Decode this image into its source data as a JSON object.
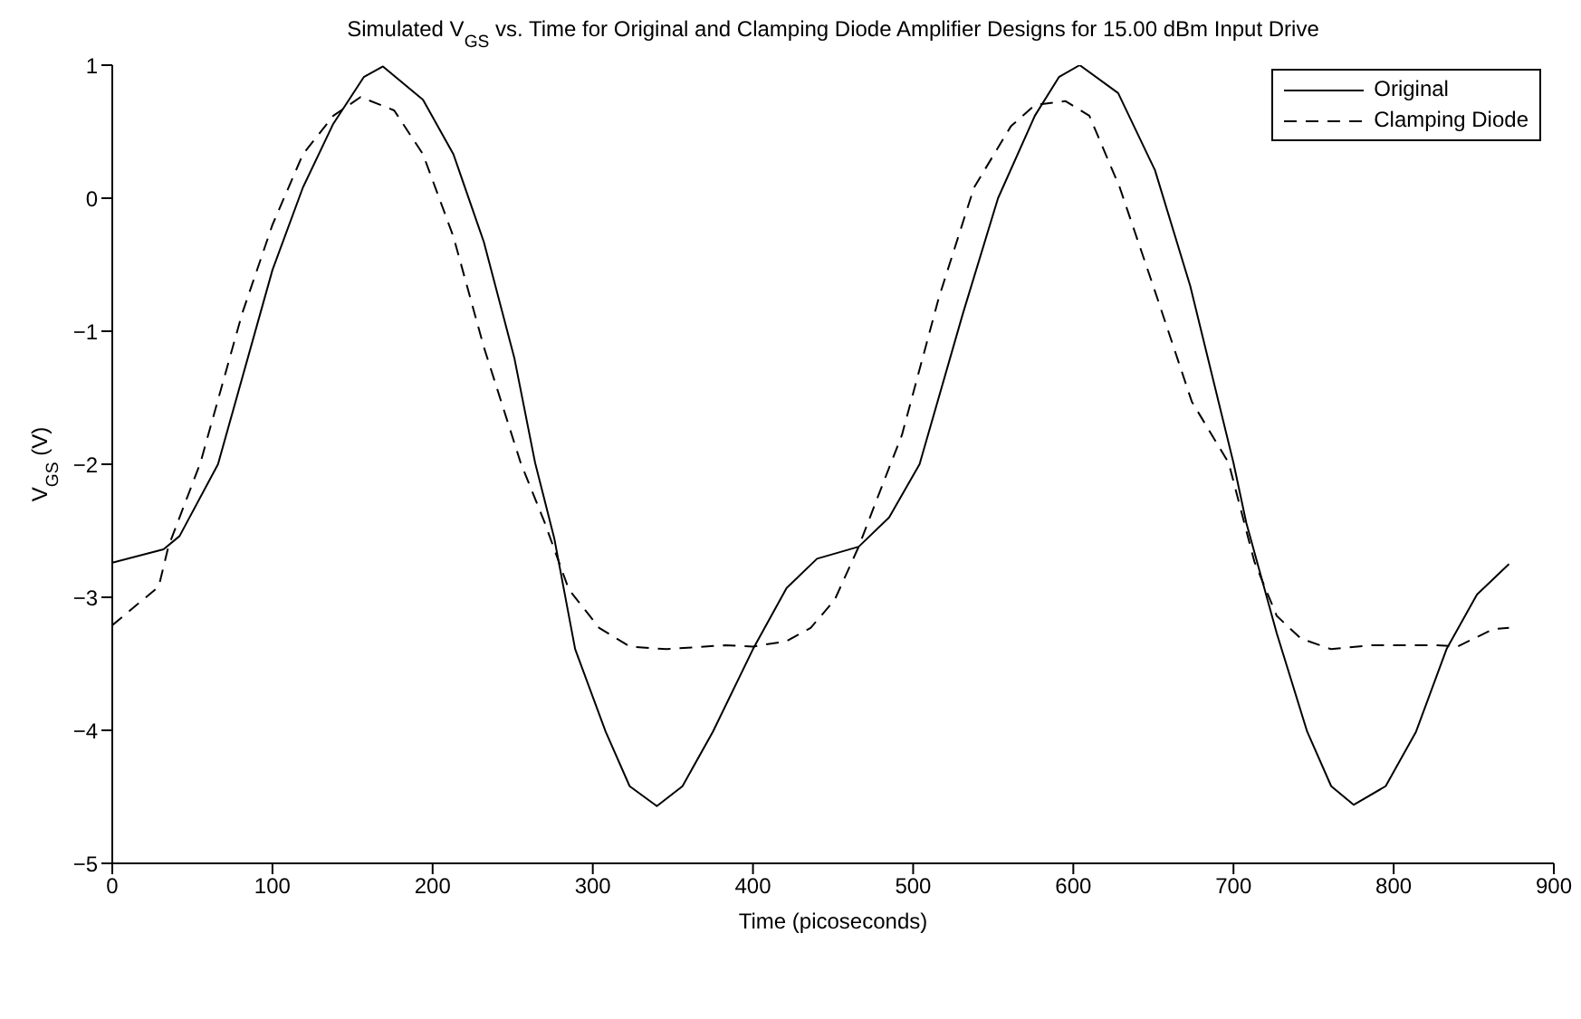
{
  "chart_data": {
    "type": "line",
    "title": "Simulated V$_{GS}$ vs. Time for Original and Clamping Diode Amplifier Designs for 15.00 dBm Input Drive",
    "xlabel": "Time (picoseconds)",
    "ylabel": "V$_{GS}$ (V)",
    "xlim": [
      0,
      900
    ],
    "xticks": [
      0,
      100,
      200,
      300,
      400,
      500,
      600,
      700,
      800,
      900
    ],
    "ylim": [
      -5,
      1
    ],
    "yticks": [
      -5,
      -4,
      -3,
      -2,
      -1,
      0,
      1
    ],
    "legend": "top right",
    "marker": "none",
    "series": [
      {
        "name": "Original",
        "color": "#000000",
        "line_style": "solid",
        "x": [
          0,
          32,
          42,
          66,
          100,
          119,
          138,
          157,
          169,
          194,
          213,
          232,
          251,
          264,
          276,
          289,
          308,
          323,
          340,
          356,
          375,
          400,
          421,
          440,
          466,
          485,
          504,
          531,
          553,
          576,
          591,
          604,
          628,
          651,
          673,
          700,
          708,
          727,
          746,
          761,
          775,
          795,
          814,
          833,
          852,
          872
        ],
        "values": [
          -2.74,
          -2.64,
          -2.54,
          -2.0,
          -0.54,
          0.08,
          0.56,
          0.91,
          0.99,
          0.74,
          0.33,
          -0.33,
          -1.2,
          -1.99,
          -2.56,
          -3.39,
          -4.01,
          -4.42,
          -4.57,
          -4.42,
          -4.01,
          -3.39,
          -2.93,
          -2.71,
          -2.62,
          -2.4,
          -2.0,
          -0.87,
          0,
          0.62,
          0.91,
          1.0,
          0.79,
          0.21,
          -0.66,
          -1.99,
          -2.44,
          -3.27,
          -4.01,
          -4.42,
          -4.56,
          -4.42,
          -4.01,
          -3.39,
          -2.98,
          -2.75
        ]
      },
      {
        "name": "Clamping Diode",
        "color": "#000000",
        "line_style": "dashed",
        "x": [
          0,
          29,
          35,
          55,
          81,
          100,
          119,
          138,
          155,
          176,
          194,
          213,
          232,
          255,
          270,
          285,
          304,
          323,
          346,
          383,
          400,
          421,
          436,
          451,
          466,
          481,
          493,
          516,
          538,
          561,
          576,
          595,
          610,
          629,
          651,
          674,
          697,
          713,
          727,
          742,
          761,
          787,
          825,
          840,
          862,
          872
        ],
        "values": [
          -3.21,
          -2.92,
          -2.62,
          -1.99,
          -0.87,
          -0.2,
          0.33,
          0.62,
          0.76,
          0.66,
          0.33,
          -0.29,
          -1.12,
          -1.99,
          -2.44,
          -2.94,
          -3.23,
          -3.37,
          -3.39,
          -3.36,
          -3.37,
          -3.33,
          -3.23,
          -3.02,
          -2.62,
          -2.15,
          -1.78,
          -0.75,
          0.08,
          0.54,
          0.7,
          0.73,
          0.62,
          0.08,
          -0.7,
          -1.53,
          -1.99,
          -2.73,
          -3.14,
          -3.31,
          -3.39,
          -3.36,
          -3.36,
          -3.37,
          -3.24,
          -3.23
        ]
      }
    ]
  }
}
